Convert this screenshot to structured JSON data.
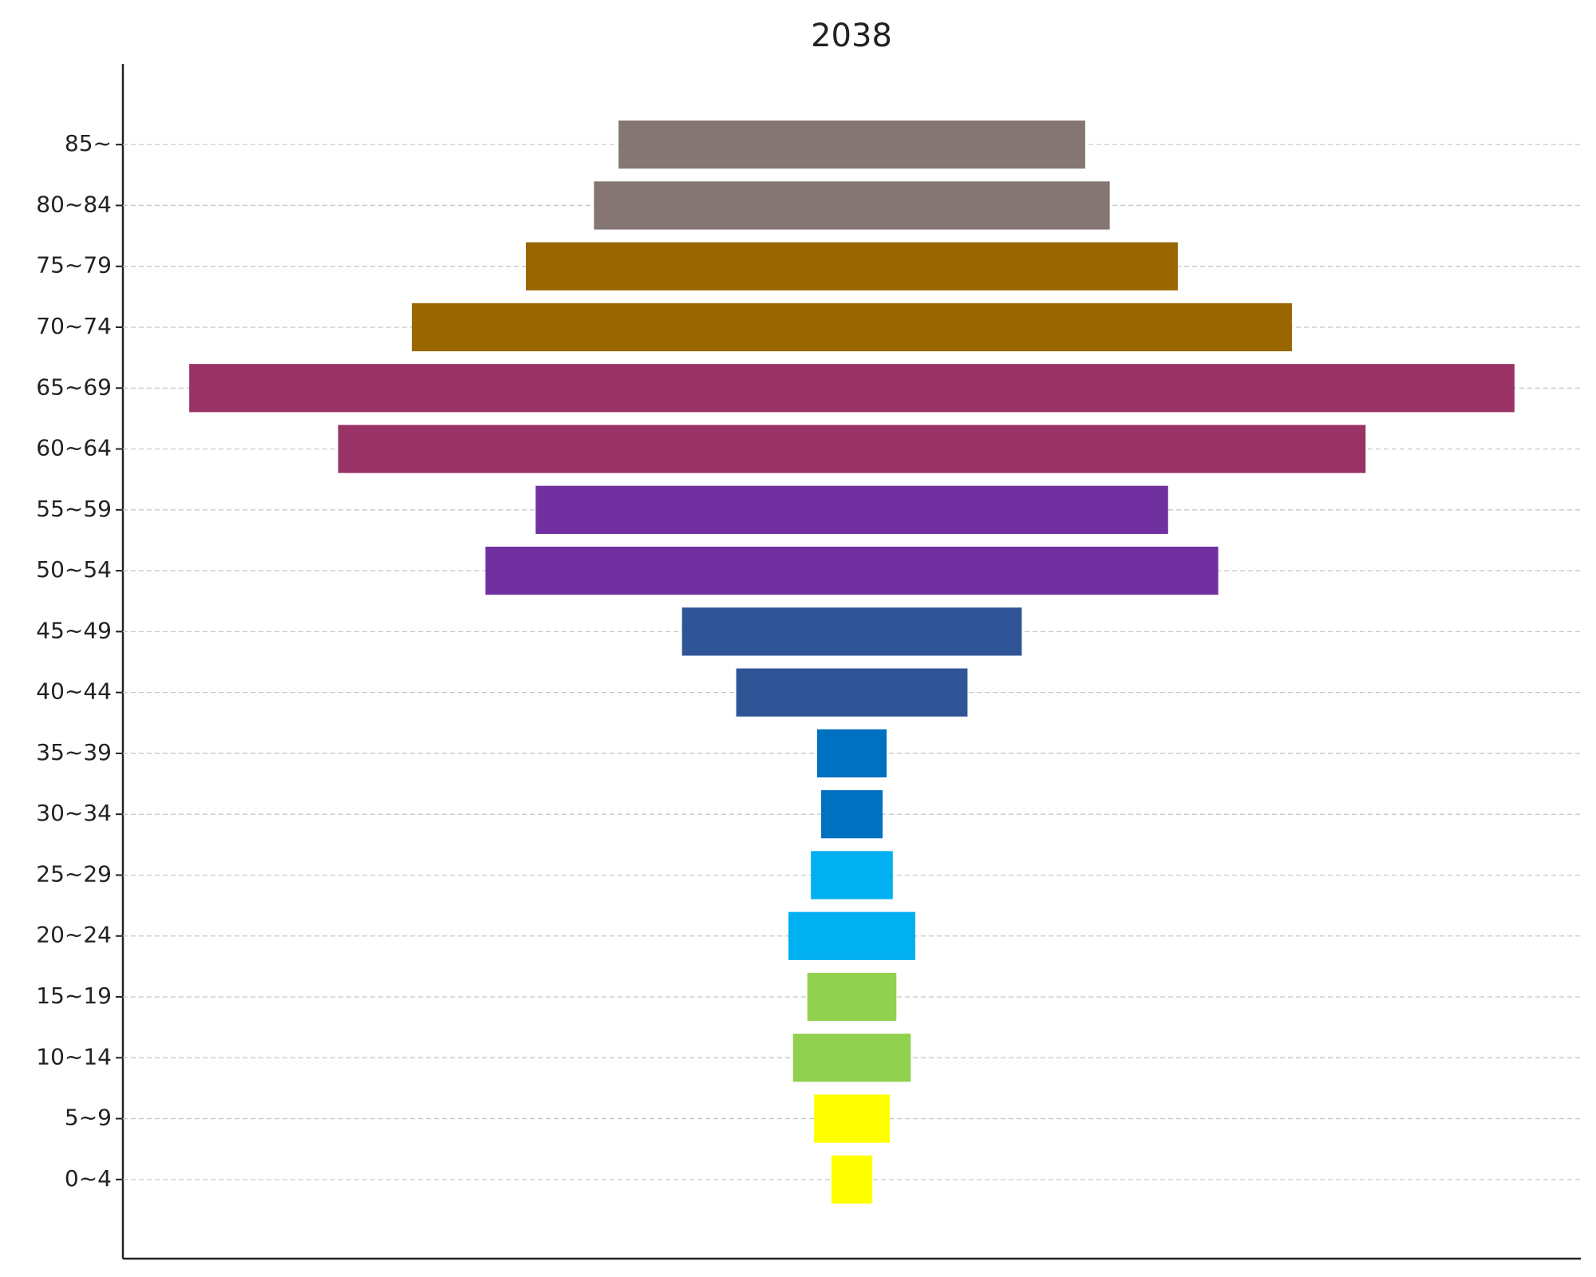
{
  "chart_data": {
    "type": "funnel",
    "title": "2038",
    "categories": [
      "0~4",
      "5~9",
      "10~14",
      "15~19",
      "20~24",
      "25~29",
      "30~34",
      "35~39",
      "40~44",
      "45~49",
      "50~54",
      "55~59",
      "60~64",
      "65~69",
      "70~74",
      "75~79",
      "80~84",
      "85~"
    ],
    "values": [
      40,
      74,
      115,
      87,
      124,
      80,
      60,
      68,
      226,
      332,
      716,
      618,
      1004,
      1295,
      860,
      637,
      504,
      456
    ],
    "colors": [
      "#ffff00",
      "#ffff00",
      "#92d050",
      "#92d050",
      "#00b0f0",
      "#00b0f0",
      "#0070c0",
      "#0070c0",
      "#2f5597",
      "#2f5597",
      "#7030a0",
      "#7030a0",
      "#993366",
      "#993366",
      "#996600",
      "#996600",
      "#857674",
      "#857674"
    ],
    "grid": true
  }
}
